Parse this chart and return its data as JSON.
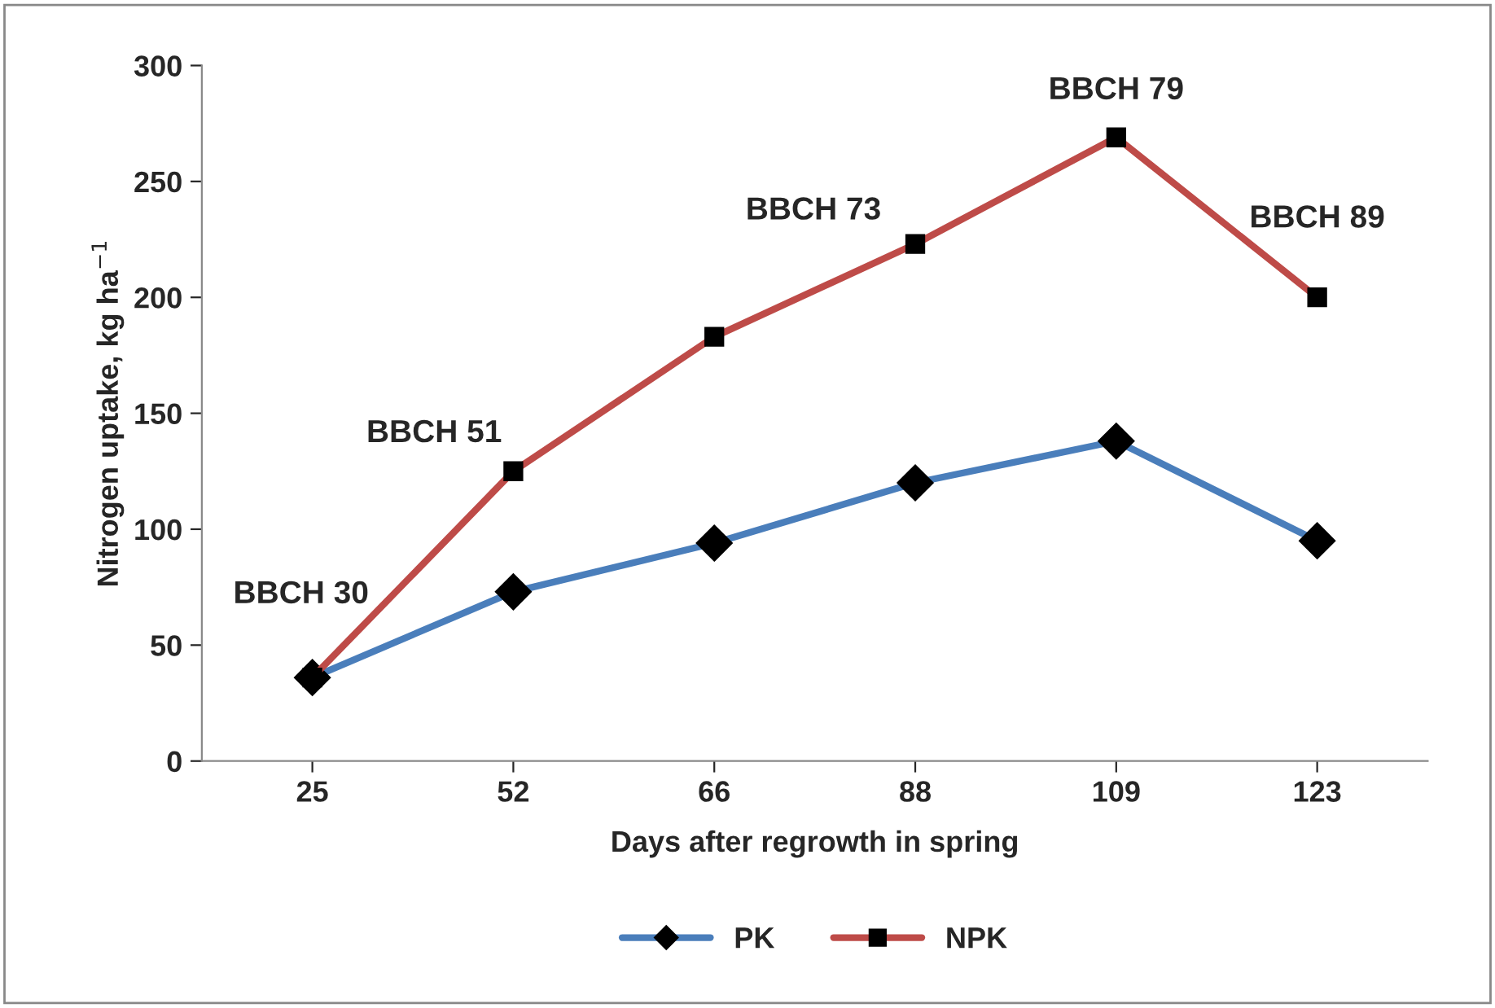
{
  "chart_data": {
    "type": "line",
    "xlabel": "Days after regrowth in spring",
    "ylabel": "Nitrogen uptake, kg ha$^{−1}$",
    "categories": [
      "25",
      "52",
      "66",
      "88",
      "109",
      "123"
    ],
    "series": [
      {
        "name": "PK",
        "color": "#4a7ebb",
        "marker": "diamond",
        "values": [
          36,
          73,
          94,
          120,
          138,
          95
        ]
      },
      {
        "name": "NPK",
        "color": "#be4b48",
        "marker": "square",
        "values": [
          36,
          125,
          183,
          223,
          269,
          200
        ]
      }
    ],
    "annotations": [
      {
        "text": "BBCH 30",
        "x": "25",
        "y": 36
      },
      {
        "text": "BBCH 51",
        "x": "52",
        "y": 125
      },
      {
        "text": "BBCH 73",
        "x": "88",
        "y": 223
      },
      {
        "text": "BBCH 79",
        "x": "109",
        "y": 269
      },
      {
        "text": "BBCH 89",
        "x": "123",
        "y": 200
      }
    ],
    "ylim": [
      0,
      300
    ],
    "yticks": [
      0,
      50,
      100,
      150,
      200,
      250,
      300
    ],
    "grid": false,
    "legend": "bottom",
    "line_style": "solid"
  }
}
